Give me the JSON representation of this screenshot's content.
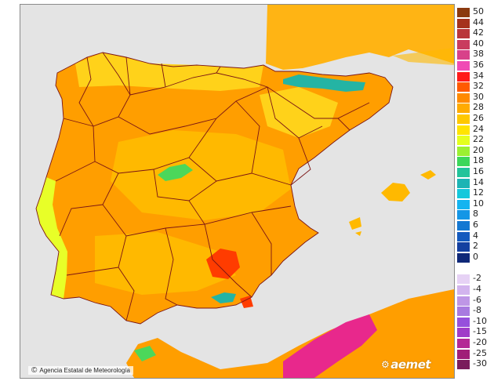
{
  "credit": {
    "text": "Agencia Estatal de Meteorología",
    "icon": "copyright-icon"
  },
  "brand": {
    "text": "aemet",
    "icon": "aemet-logo-icon"
  },
  "legend": {
    "items": [
      {
        "label": "50",
        "color": "#8b3a0f"
      },
      {
        "label": "44",
        "color": "#a5321c"
      },
      {
        "label": "42",
        "color": "#b9363a"
      },
      {
        "label": "40",
        "color": "#c93c5e"
      },
      {
        "label": "38",
        "color": "#d8428a"
      },
      {
        "label": "36",
        "color": "#f04bb5"
      },
      {
        "label": "34",
        "color": "#ff1a1a"
      },
      {
        "label": "32",
        "color": "#ff5a00"
      },
      {
        "label": "30",
        "color": "#ff8a00"
      },
      {
        "label": "28",
        "color": "#ffab00"
      },
      {
        "label": "26",
        "color": "#ffc800"
      },
      {
        "label": "24",
        "color": "#ffe400"
      },
      {
        "label": "22",
        "color": "#e4ff1e"
      },
      {
        "label": "20",
        "color": "#9cf032"
      },
      {
        "label": "18",
        "color": "#3cd75a"
      },
      {
        "label": "16",
        "color": "#22c39a"
      },
      {
        "label": "14",
        "color": "#1cb4b4"
      },
      {
        "label": "12",
        "color": "#14c8dc"
      },
      {
        "label": "10",
        "color": "#14b4f0"
      },
      {
        "label": "8",
        "color": "#1496e6"
      },
      {
        "label": "6",
        "color": "#1478d2"
      },
      {
        "label": "4",
        "color": "#145abe"
      },
      {
        "label": "2",
        "color": "#1440a0"
      },
      {
        "label": "0",
        "color": "#0f2878"
      },
      {
        "label": "-2",
        "color": "#e6d2f5"
      },
      {
        "label": "-4",
        "color": "#d2b4ee"
      },
      {
        "label": "-6",
        "color": "#be96e6"
      },
      {
        "label": "-8",
        "color": "#a87ae0"
      },
      {
        "label": "-10",
        "color": "#9650dc"
      },
      {
        "label": "-15",
        "color": "#a03cc8"
      },
      {
        "label": "-20",
        "color": "#b42896"
      },
      {
        "label": "-25",
        "color": "#a01e78"
      },
      {
        "label": "-30",
        "color": "#7a1c5c"
      }
    ]
  },
  "map": {
    "colors": {
      "sea": "#e4e4e4",
      "france": "#ffb414",
      "land_base": "#ff9e00",
      "warm": "#ffb900",
      "cool": "#ffd21a",
      "coast": "#e8ff28",
      "green": "#4cd75a",
      "teal": "#24b4a4",
      "hot": "#ff3c00",
      "magenta": "#e8288c",
      "boundary": "#7a1414"
    }
  }
}
